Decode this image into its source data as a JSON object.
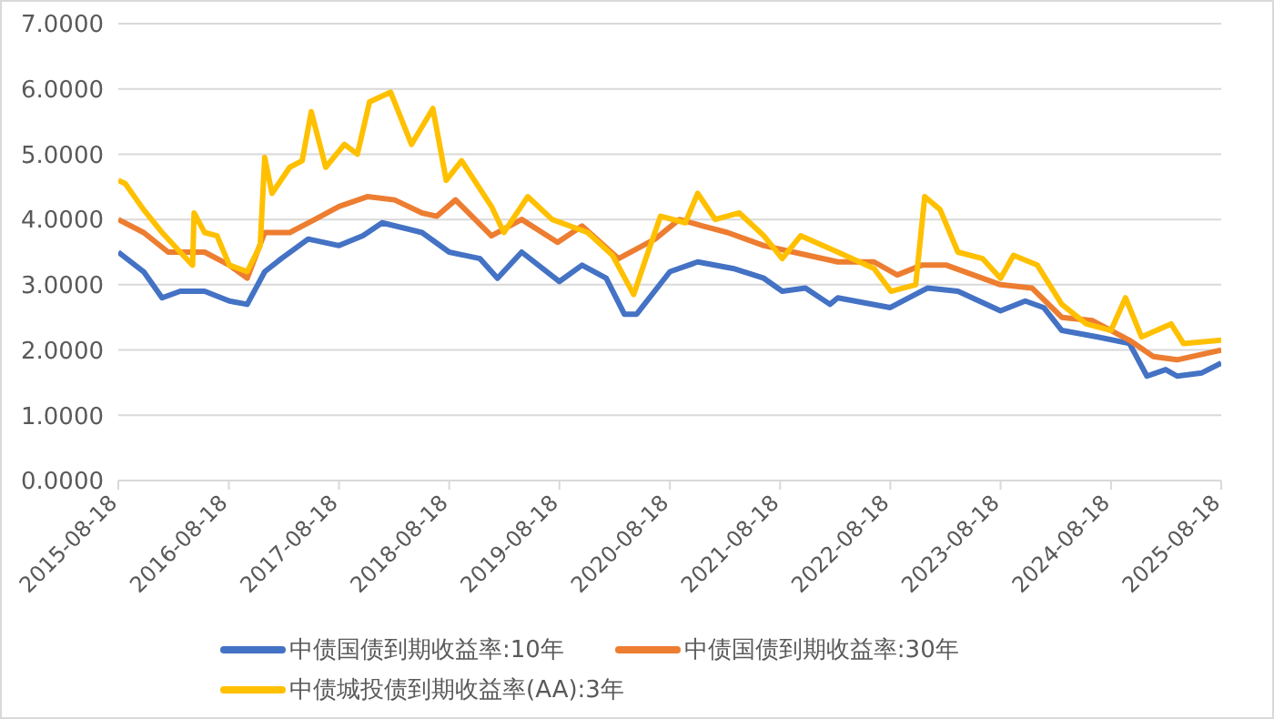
{
  "chart_data": {
    "type": "line",
    "xlim": [
      "2015-08-18",
      "2025-08-18"
    ],
    "xticks": [
      "2015-08-18",
      "2016-08-18",
      "2017-08-18",
      "2018-08-18",
      "2019-08-18",
      "2020-08-18",
      "2021-08-18",
      "2022-08-18",
      "2023-08-18",
      "2024-08-18",
      "2025-08-18"
    ],
    "ylim": [
      0,
      7
    ],
    "yticks": [
      {
        "value": 0,
        "label": "0.0000"
      },
      {
        "value": 1,
        "label": "1.0000"
      },
      {
        "value": 2,
        "label": "2.0000"
      },
      {
        "value": 3,
        "label": "3.0000"
      },
      {
        "value": 4,
        "label": "4.0000"
      },
      {
        "value": 5,
        "label": "5.0000"
      },
      {
        "value": 6,
        "label": "6.0000"
      },
      {
        "value": 7,
        "label": "7.0000"
      }
    ],
    "grid": "y",
    "legend": "bottom",
    "marker": "none",
    "line_style": "solid",
    "series": [
      {
        "name": "中债国债到期收益率:10年",
        "color": "#4472c4",
        "x": [
          "2015-08-18",
          "2015-11-10",
          "2016-01-10",
          "2016-03-10",
          "2016-05-30",
          "2016-08-20",
          "2016-10-18",
          "2016-12-15",
          "2017-02-08",
          "2017-05-08",
          "2017-08-18",
          "2017-11-05",
          "2018-01-08",
          "2018-05-20",
          "2018-08-18",
          "2018-11-28",
          "2019-01-25",
          "2019-04-15",
          "2019-08-18",
          "2019-11-01",
          "2020-01-20",
          "2020-03-20",
          "2020-04-30",
          "2020-08-18",
          "2020-11-18",
          "2021-03-15",
          "2021-06-25",
          "2021-08-25",
          "2021-11-10",
          "2022-01-30",
          "2022-02-25",
          "2022-08-18",
          "2022-12-20",
          "2023-03-30",
          "2023-08-18",
          "2023-11-08",
          "2024-01-08",
          "2024-03-08",
          "2024-07-05",
          "2024-10-18",
          "2024-12-15",
          "2025-02-15",
          "2025-03-25",
          "2025-06-15",
          "2025-08-18"
        ],
        "values": [
          3.5,
          3.2,
          2.8,
          2.9,
          2.9,
          2.75,
          2.7,
          3.2,
          3.4,
          3.7,
          3.6,
          3.75,
          3.95,
          3.8,
          3.5,
          3.4,
          3.1,
          3.5,
          3.05,
          3.3,
          3.1,
          2.55,
          2.55,
          3.2,
          3.35,
          3.25,
          3.1,
          2.9,
          2.95,
          2.7,
          2.8,
          2.65,
          2.95,
          2.9,
          2.6,
          2.75,
          2.65,
          2.3,
          2.2,
          2.1,
          1.6,
          1.7,
          1.6,
          1.65,
          1.8
        ]
      },
      {
        "name": "中债国债到期收益率:30年",
        "color": "#ed7d31",
        "x": [
          "2015-08-18",
          "2015-11-10",
          "2016-01-30",
          "2016-05-30",
          "2016-08-20",
          "2016-10-18",
          "2016-12-15",
          "2017-03-08",
          "2017-05-30",
          "2017-08-18",
          "2017-11-20",
          "2018-02-18",
          "2018-05-20",
          "2018-07-08",
          "2018-09-08",
          "2019-01-05",
          "2019-04-15",
          "2019-08-12",
          "2019-11-01",
          "2020-03-01",
          "2020-06-30",
          "2020-09-18",
          "2020-12-05",
          "2021-02-25",
          "2021-06-25",
          "2021-10-01",
          "2022-02-25",
          "2022-06-25",
          "2022-09-10",
          "2022-11-30",
          "2023-02-20",
          "2023-08-18",
          "2023-11-30",
          "2024-03-08",
          "2024-06-18",
          "2024-10-18",
          "2025-01-05",
          "2025-03-25",
          "2025-08-18"
        ],
        "values": [
          4.0,
          3.8,
          3.5,
          3.5,
          3.3,
          3.1,
          3.8,
          3.8,
          4.0,
          4.2,
          4.35,
          4.3,
          4.1,
          4.05,
          4.3,
          3.75,
          4.0,
          3.65,
          3.9,
          3.4,
          3.7,
          4.0,
          3.9,
          3.8,
          3.6,
          3.5,
          3.35,
          3.35,
          3.15,
          3.3,
          3.3,
          3.0,
          2.95,
          2.5,
          2.45,
          2.15,
          1.9,
          1.85,
          2.0
        ]
      },
      {
        "name": "中债城投债到期收益率(AA):3年",
        "color": "#ffc000",
        "x": [
          "2015-08-18",
          "2015-09-10",
          "2015-11-10",
          "2016-01-10",
          "2016-03-10",
          "2016-04-20",
          "2016-04-25",
          "2016-05-30",
          "2016-07-10",
          "2016-08-20",
          "2016-10-18",
          "2016-11-30",
          "2016-12-15",
          "2017-01-08",
          "2017-03-08",
          "2017-04-18",
          "2017-05-18",
          "2017-07-05",
          "2017-09-05",
          "2017-10-18",
          "2017-11-27",
          "2018-02-05",
          "2018-04-15",
          "2018-06-25",
          "2018-08-08",
          "2018-09-28",
          "2019-01-05",
          "2019-02-15",
          "2019-05-05",
          "2019-07-25",
          "2019-11-20",
          "2020-02-10",
          "2020-04-20",
          "2020-05-30",
          "2020-07-18",
          "2020-10-08",
          "2020-11-18",
          "2021-01-15",
          "2021-04-05",
          "2021-06-25",
          "2021-08-25",
          "2021-10-25",
          "2022-02-25",
          "2022-06-25",
          "2022-08-20",
          "2022-11-10",
          "2022-12-10",
          "2023-01-30",
          "2023-03-30",
          "2023-06-20",
          "2023-08-18",
          "2023-09-30",
          "2023-12-18",
          "2024-03-08",
          "2024-05-28",
          "2024-08-18",
          "2024-10-05",
          "2024-11-27",
          "2025-03-05",
          "2025-04-15",
          "2025-08-18"
        ],
        "values": [
          4.6,
          4.55,
          4.15,
          3.8,
          3.5,
          3.3,
          4.1,
          3.8,
          3.75,
          3.3,
          3.2,
          3.6,
          4.95,
          4.4,
          4.8,
          4.9,
          5.65,
          4.8,
          5.15,
          5.0,
          5.8,
          5.95,
          5.15,
          5.7,
          4.6,
          4.9,
          4.2,
          3.8,
          4.35,
          4.0,
          3.8,
          3.45,
          2.85,
          3.4,
          4.05,
          3.95,
          4.4,
          4.0,
          4.1,
          3.75,
          3.4,
          3.75,
          3.5,
          3.25,
          2.9,
          3.0,
          4.35,
          4.15,
          3.5,
          3.4,
          3.1,
          3.45,
          3.3,
          2.7,
          2.4,
          2.3,
          2.8,
          2.2,
          2.4,
          2.1,
          2.15
        ]
      }
    ]
  }
}
